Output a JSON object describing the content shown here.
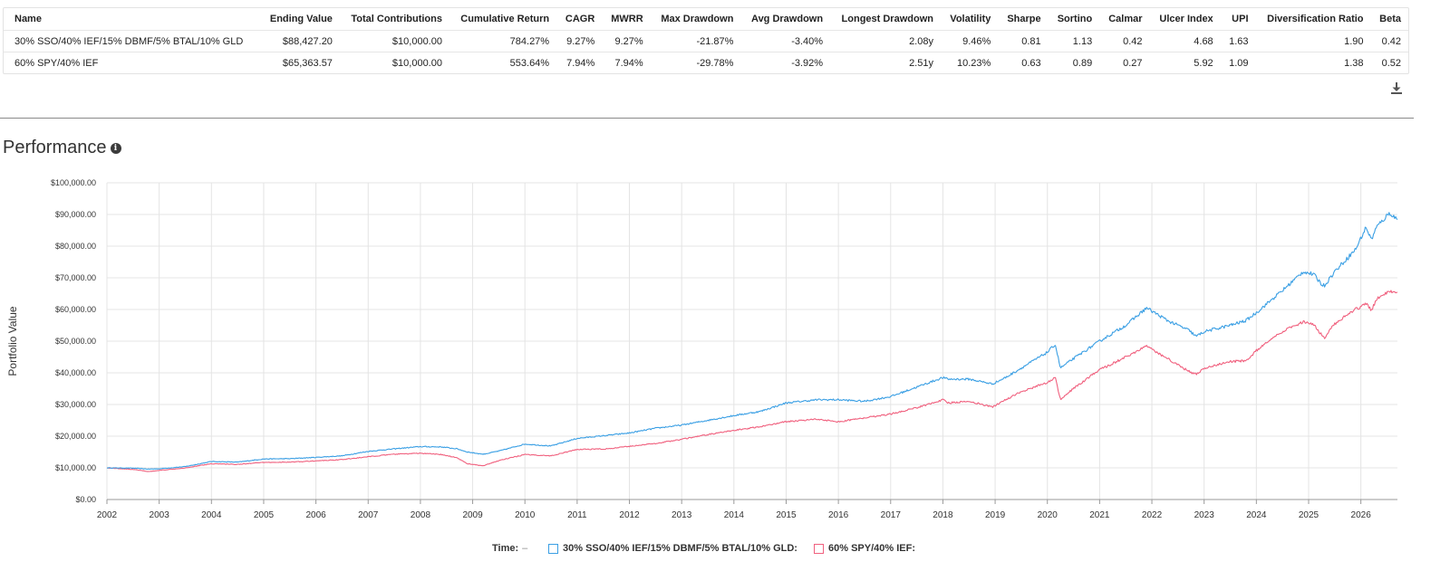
{
  "table": {
    "headers": [
      "Name",
      "Ending Value",
      "Total Contributions",
      "Cumulative Return",
      "CAGR",
      "MWRR",
      "Max Drawdown",
      "Avg Drawdown",
      "Longest Drawdown",
      "Volatility",
      "Sharpe",
      "Sortino",
      "Calmar",
      "Ulcer Index",
      "UPI",
      "Diversification Ratio",
      "Beta"
    ],
    "rows": [
      [
        "30% SSO/40% IEF/15% DBMF/5% BTAL/10% GLD",
        "$88,427.20",
        "$10,000.00",
        "784.27%",
        "9.27%",
        "9.27%",
        "-21.87%",
        "-3.40%",
        "2.08y",
        "9.46%",
        "0.81",
        "1.13",
        "0.42",
        "4.68",
        "1.63",
        "1.90",
        "0.42"
      ],
      [
        "60% SPY/40% IEF",
        "$65,363.57",
        "$10,000.00",
        "553.64%",
        "7.94%",
        "7.94%",
        "-29.78%",
        "-3.92%",
        "2.51y",
        "10.23%",
        "0.63",
        "0.89",
        "0.27",
        "5.92",
        "1.09",
        "1.38",
        "0.52"
      ]
    ]
  },
  "icons": {
    "download": "download-icon",
    "info": "info-icon"
  },
  "performance": {
    "title": "Performance",
    "info_glyph": "i"
  },
  "chart_data": {
    "type": "line",
    "ylabel": "Portfolio Value",
    "xlabel": "",
    "ylim": [
      0,
      100000
    ],
    "yticks": [
      "$0.00",
      "$10,000.00",
      "$20,000.00",
      "$30,000.00",
      "$40,000.00",
      "$50,000.00",
      "$60,000.00",
      "$70,000.00",
      "$80,000.00",
      "$90,000.00",
      "$100,000.00"
    ],
    "xlim": [
      2002.0,
      2026.7
    ],
    "xticks": [
      "2002",
      "2003",
      "2004",
      "2005",
      "2006",
      "2007",
      "2008",
      "2009",
      "2010",
      "2011",
      "2012",
      "2013",
      "2014",
      "2015",
      "2016",
      "2017",
      "2018",
      "2019",
      "2020",
      "2021",
      "2022",
      "2023",
      "2024",
      "2025",
      "2026"
    ],
    "grid": true,
    "legend_position": "bottom",
    "series": [
      {
        "name": "30% SSO/40% IEF/15% DBMF/5% BTAL/10% GLD:",
        "color": "#3a9fe4",
        "x": [
          2002.0,
          2002.5,
          2002.8,
          2003.0,
          2003.5,
          2004.0,
          2004.5,
          2005.0,
          2005.5,
          2006.0,
          2006.5,
          2007.0,
          2007.5,
          2008.0,
          2008.4,
          2008.7,
          2008.9,
          2009.2,
          2009.5,
          2010.0,
          2010.5,
          2011.0,
          2011.6,
          2012.0,
          2012.5,
          2013.0,
          2013.5,
          2014.0,
          2014.5,
          2015.0,
          2015.6,
          2016.0,
          2016.5,
          2017.0,
          2017.5,
          2018.0,
          2018.1,
          2018.5,
          2018.95,
          2019.2,
          2019.5,
          2020.0,
          2020.15,
          2020.25,
          2020.5,
          2021.0,
          2021.5,
          2021.9,
          2022.3,
          2022.7,
          2022.85,
          2023.0,
          2023.5,
          2023.8,
          2024.0,
          2024.5,
          2024.9,
          2025.1,
          2025.25,
          2025.3,
          2025.5,
          2025.9,
          2026.1,
          2026.2,
          2026.3,
          2026.55,
          2026.7
        ],
        "y": [
          10000,
          9900,
          9600,
          9700,
          10400,
          12000,
          11800,
          12800,
          12900,
          13300,
          13800,
          15200,
          16000,
          16700,
          16600,
          16000,
          15000,
          14300,
          15300,
          17500,
          16900,
          19300,
          20300,
          21000,
          22500,
          23500,
          25000,
          26500,
          27800,
          30500,
          31500,
          31500,
          31000,
          32500,
          35500,
          38500,
          38000,
          38000,
          36500,
          38500,
          41500,
          46500,
          49000,
          41500,
          44500,
          50000,
          55000,
          60500,
          56500,
          53500,
          51500,
          53000,
          55000,
          56500,
          59000,
          66000,
          72000,
          71000,
          68000,
          67500,
          72000,
          79000,
          86000,
          82000,
          86000,
          90500,
          88400
        ]
      },
      {
        "name": "60% SPY/40% IEF:",
        "color": "#f0607e",
        "x": [
          2002.0,
          2002.5,
          2002.8,
          2003.0,
          2003.5,
          2004.0,
          2004.5,
          2005.0,
          2005.5,
          2006.0,
          2006.5,
          2007.0,
          2007.5,
          2008.0,
          2008.4,
          2008.7,
          2008.9,
          2009.2,
          2009.5,
          2010.0,
          2010.5,
          2011.0,
          2011.6,
          2012.0,
          2012.5,
          2013.0,
          2013.5,
          2014.0,
          2014.5,
          2015.0,
          2015.6,
          2016.0,
          2016.5,
          2017.0,
          2017.5,
          2018.0,
          2018.1,
          2018.5,
          2018.95,
          2019.2,
          2019.5,
          2020.0,
          2020.15,
          2020.25,
          2020.5,
          2021.0,
          2021.5,
          2021.9,
          2022.3,
          2022.7,
          2022.85,
          2023.0,
          2023.5,
          2023.8,
          2024.0,
          2024.5,
          2024.9,
          2025.1,
          2025.25,
          2025.3,
          2025.5,
          2025.9,
          2026.1,
          2026.2,
          2026.3,
          2026.55,
          2026.7
        ],
        "y": [
          10000,
          9500,
          8800,
          9200,
          10000,
          11300,
          11100,
          11700,
          11800,
          12200,
          12600,
          13500,
          14300,
          14600,
          14200,
          13200,
          11300,
          10600,
          12300,
          14200,
          13800,
          15800,
          16000,
          16800,
          17700,
          19000,
          20500,
          21800,
          23000,
          24600,
          25400,
          24500,
          25800,
          27000,
          29000,
          31500,
          30500,
          31000,
          29200,
          31500,
          34000,
          37000,
          38500,
          31500,
          35000,
          41000,
          45000,
          48500,
          44500,
          40500,
          39500,
          41500,
          43500,
          43800,
          47000,
          53000,
          56000,
          55000,
          52000,
          51000,
          55500,
          60000,
          62000,
          59500,
          63500,
          66000,
          65400
        ]
      }
    ]
  },
  "legend": {
    "time_label": "Time:",
    "time_value": "–"
  }
}
